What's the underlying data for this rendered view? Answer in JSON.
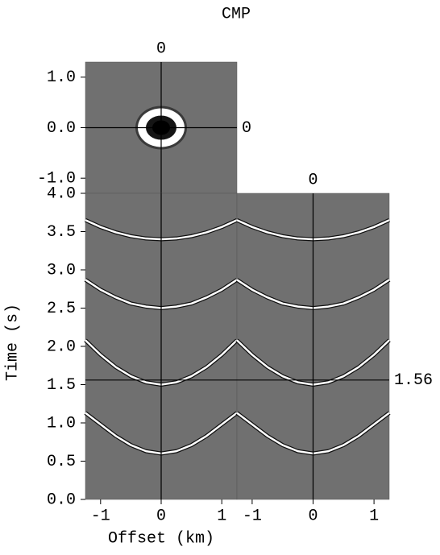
{
  "title": "CMP",
  "ylabel": "Time (s)",
  "xlabel": "Offset (km)",
  "chart_data": [
    {
      "type": "image",
      "xlim": [
        -1.25,
        1.25
      ],
      "ylim": [
        1.3,
        -1.3
      ],
      "yticks": [
        {
          "value": 1,
          "label": "1.0"
        },
        {
          "value": 0,
          "label": "0.0"
        },
        {
          "value": -1,
          "label": "-1.0"
        }
      ],
      "crosshair": {
        "x": 0,
        "y": 0
      }
    },
    {
      "type": "line",
      "xlim": [
        -1.25,
        1.25
      ],
      "ylim": [
        4,
        0
      ],
      "yticks": [
        {
          "value": 0,
          "label": "0.0"
        },
        0.5,
        {
          "value": 1,
          "label": "1.0"
        },
        1.5,
        {
          "value": 2,
          "label": "2.0"
        },
        2.5,
        {
          "value": 3,
          "label": "3.0"
        },
        3.5,
        {
          "value": 4,
          "label": "4.0"
        }
      ],
      "xticks": [
        -1,
        0,
        1
      ],
      "x": [
        -1.25,
        -1,
        -0.75,
        -0.5,
        -0.25,
        0,
        0.25,
        0.5,
        0.75,
        1,
        1.25
      ],
      "series": [
        {
          "color": "#ffffff",
          "values": [
            1.13,
            0.98,
            0.83,
            0.71,
            0.63,
            0.6,
            0.63,
            0.71,
            0.83,
            0.98,
            1.13
          ]
        },
        {
          "color": "#ffffff",
          "values": [
            2.08,
            1.89,
            1.73,
            1.61,
            1.53,
            1.5,
            1.53,
            1.61,
            1.73,
            1.89,
            2.08
          ]
        },
        {
          "color": "#ffffff",
          "values": [
            2.87,
            2.74,
            2.64,
            2.56,
            2.52,
            2.5,
            2.52,
            2.56,
            2.64,
            2.74,
            2.87
          ]
        },
        {
          "color": "#ffffff",
          "values": [
            3.65,
            3.56,
            3.49,
            3.44,
            3.41,
            3.4,
            3.41,
            3.44,
            3.49,
            3.56,
            3.65
          ]
        }
      ],
      "crosshair": {
        "x": 0
      }
    },
    {
      "type": "line",
      "xlim": [
        -1.25,
        1.25
      ],
      "ylim": [
        4,
        0
      ],
      "xticks": [
        -1,
        0,
        1
      ],
      "x": [
        -1.25,
        -1,
        -0.75,
        -0.5,
        -0.25,
        0,
        0.25,
        0.5,
        0.75,
        1,
        1.25
      ],
      "series": [
        {
          "color": "#ffffff",
          "values": [
            1.13,
            0.98,
            0.83,
            0.71,
            0.63,
            0.6,
            0.63,
            0.71,
            0.83,
            0.98,
            1.13
          ]
        },
        {
          "color": "#ffffff",
          "values": [
            2.08,
            1.89,
            1.73,
            1.61,
            1.53,
            1.5,
            1.53,
            1.61,
            1.73,
            1.89,
            2.08
          ]
        },
        {
          "color": "#ffffff",
          "values": [
            2.87,
            2.74,
            2.64,
            2.56,
            2.52,
            2.5,
            2.52,
            2.56,
            2.64,
            2.74,
            2.87
          ]
        },
        {
          "color": "#ffffff",
          "values": [
            3.65,
            3.56,
            3.49,
            3.44,
            3.41,
            3.4,
            3.41,
            3.44,
            3.49,
            3.56,
            3.65
          ]
        }
      ],
      "crosshair": {
        "x": 0,
        "y": 1.56
      }
    }
  ]
}
